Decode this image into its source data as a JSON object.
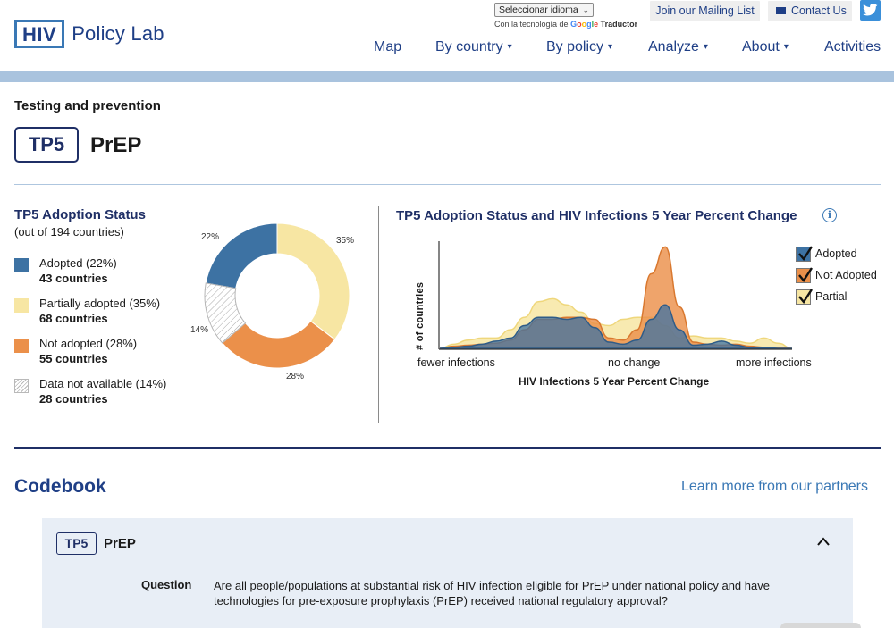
{
  "header": {
    "logo_box": "HIV",
    "logo_text": "Policy Lab",
    "language": {
      "selected": "Seleccionar idioma",
      "powered_prefix": "Con la tecnología de",
      "google": "Google",
      "powered_suffix": "Traductor"
    },
    "mailing_label": "Join our Mailing List",
    "contact_label": "Contact Us",
    "nav": [
      {
        "label": "Map",
        "caret": ""
      },
      {
        "label": "By country",
        "caret": "▾"
      },
      {
        "label": "By policy",
        "caret": "▾"
      },
      {
        "label": "Analyze",
        "caret": "▾"
      },
      {
        "label": "About",
        "caret": "▾"
      },
      {
        "label": "Activities",
        "caret": ""
      }
    ],
    "colors": {
      "navy": "#1f2f66",
      "link_blue": "#1f3f86",
      "band": "#a9c3de",
      "twitter": "#3a8fd9"
    }
  },
  "page": {
    "section": "Testing and prevention",
    "code": "TP5",
    "name": "PrEP"
  },
  "adoption": {
    "title": "TP5 Adoption Status",
    "subtitle": "(out of 194 countries)",
    "legend": [
      {
        "label": "Adopted (22%)",
        "count": "43 countries",
        "color": "#3d72a3"
      },
      {
        "label": "Partially adopted (35%)",
        "count": "68 countries",
        "color": "#f7e6a3"
      },
      {
        "label": "Not adopted (28%)",
        "count": "55 countries",
        "color": "#eb904a"
      },
      {
        "label": "Data not available (14%)",
        "count": "28 countries",
        "color": "hatch"
      }
    ]
  },
  "chart_data": [
    {
      "type": "pie",
      "title": "",
      "categories": [
        "Adopted",
        "Partially adopted",
        "Not adopted",
        "Data not available"
      ],
      "values": [
        22,
        35,
        28,
        14
      ],
      "labels": [
        "22%",
        "35%",
        "28%",
        "14%"
      ],
      "colors": [
        "#3d72a3",
        "#f7e6a3",
        "#eb904a",
        "hatch"
      ],
      "donut": true
    },
    {
      "type": "area",
      "title": "TP5 Adoption Status and HIV Infections 5 Year Percent Change",
      "xlabel": "HIV Infections 5 Year Percent Change",
      "ylabel": "# of countries",
      "x_tick_labels": [
        "fewer infections",
        "no change",
        "more infections"
      ],
      "legend_position": "top-right",
      "series": [
        {
          "name": "Partial",
          "color": "#f7e6a3",
          "values": [
            0,
            0.04,
            0.08,
            0.1,
            0.1,
            0.18,
            0.3,
            0.45,
            0.48,
            0.42,
            0.35,
            0.24,
            0.22,
            0.28,
            0.3,
            0.3,
            0.22,
            0.1,
            0.12,
            0.1,
            0.1,
            0.07,
            0.05,
            0.1,
            0.05,
            0
          ]
        },
        {
          "name": "Not Adopted",
          "color": "#eb904a",
          "values": [
            0,
            0.02,
            0.03,
            0.04,
            0.05,
            0.08,
            0.18,
            0.28,
            0.28,
            0.3,
            0.3,
            0.28,
            0.1,
            0.08,
            0.18,
            0.72,
            0.98,
            0.4,
            0.06,
            0.04,
            0.03,
            0.04,
            0.02,
            0.01,
            0.01,
            0
          ]
        },
        {
          "name": "Adopted",
          "color": "#3d72a3",
          "values": [
            0,
            0.01,
            0.02,
            0.04,
            0.07,
            0.1,
            0.22,
            0.3,
            0.3,
            0.28,
            0.3,
            0.2,
            0.06,
            0.04,
            0.08,
            0.28,
            0.42,
            0.18,
            0.03,
            0.04,
            0.07,
            0.03,
            0.01,
            0.01,
            0,
            0
          ]
        }
      ],
      "grid": false
    }
  ],
  "trend": {
    "title": "TP5 Adoption Status and HIV Infections 5 Year Percent Change",
    "ylabel": "# of countries",
    "xlabel": "HIV Infections 5 Year Percent Change",
    "ticks": [
      "fewer infections",
      "no change",
      "more infections"
    ],
    "legend": [
      {
        "label": "Adopted",
        "color": "#3d72a3"
      },
      {
        "label": "Not Adopted",
        "color": "#eb904a"
      },
      {
        "label": "Partial",
        "color": "#f7e6a3"
      }
    ]
  },
  "codebook": {
    "title": "Codebook",
    "partners_link": "Learn more from our partners",
    "item": {
      "code": "TP5",
      "name": "PrEP",
      "question_label": "Question",
      "question": "Are all people/populations at substantial risk of HIV infection eligible for PrEP under national policy and have technologies for pre-exposure prophylaxis (PrEP) received national regulatory approval?"
    }
  }
}
